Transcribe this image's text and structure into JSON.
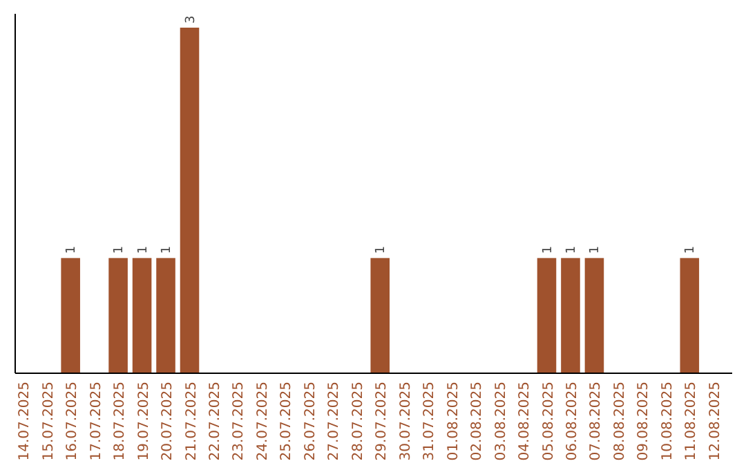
{
  "chart_data": {
    "type": "bar",
    "categories": [
      "14.07.2025",
      "15.07.2025",
      "16.07.2025",
      "17.07.2025",
      "18.07.2025",
      "19.07.2025",
      "20.07.2025",
      "21.07.2025",
      "22.07.2025",
      "23.07.2025",
      "24.07.2025",
      "25.07.2025",
      "26.07.2025",
      "27.07.2025",
      "28.07.2025",
      "29.07.2025",
      "30.07.2025",
      "31.07.2025",
      "01.08.2025",
      "02.08.2025",
      "03.08.2025",
      "04.08.2025",
      "05.08.2025",
      "06.08.2025",
      "07.08.2025",
      "08.08.2025",
      "09.08.2025",
      "10.08.2025",
      "11.08.2025",
      "12.08.2025"
    ],
    "values": [
      0,
      0,
      1,
      0,
      1,
      1,
      1,
      3,
      0,
      0,
      0,
      0,
      0,
      0,
      0,
      1,
      0,
      0,
      0,
      0,
      0,
      0,
      1,
      1,
      1,
      0,
      0,
      0,
      1,
      0
    ],
    "value_labels": [
      null,
      null,
      "1",
      null,
      "1",
      "1",
      "1",
      "3",
      null,
      null,
      null,
      null,
      null,
      null,
      null,
      "1",
      null,
      null,
      null,
      null,
      null,
      null,
      "1",
      "1",
      "1",
      null,
      null,
      null,
      "1",
      null
    ],
    "color": "#a0522d",
    "grid": false,
    "tick_labels": "x"
  }
}
